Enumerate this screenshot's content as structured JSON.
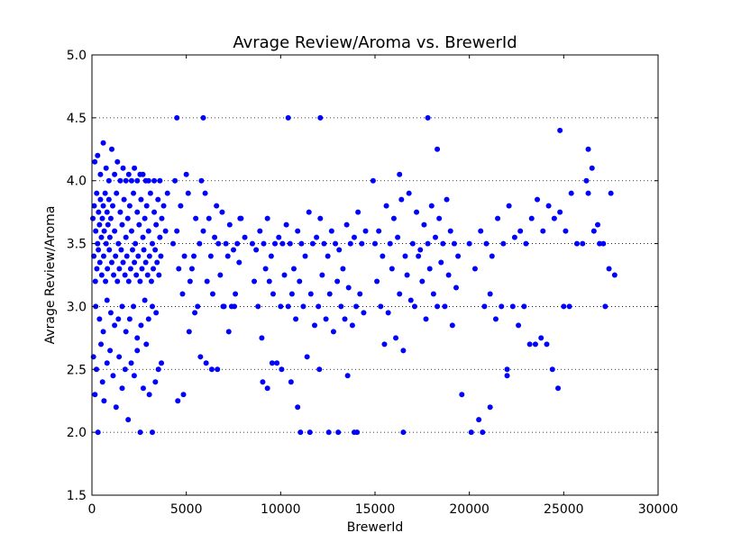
{
  "chart_data": {
    "type": "scatter",
    "title": "Avrage Review/Aroma vs. BrewerId",
    "xlabel": "BrewerId",
    "ylabel": "Avrage Review/Aroma",
    "xlim": [
      0,
      30000
    ],
    "ylim": [
      1.5,
      5.0
    ],
    "x_ticks": [
      0,
      5000,
      10000,
      15000,
      20000,
      25000,
      30000
    ],
    "x_tick_labels": [
      "0",
      "5000",
      "10000",
      "15000",
      "20000",
      "25000",
      "30000"
    ],
    "y_ticks": [
      1.5,
      2.0,
      2.5,
      3.0,
      3.5,
      4.0,
      4.5,
      5.0
    ],
    "y_tick_labels": [
      "1.5",
      "2.0",
      "2.5",
      "3.0",
      "3.5",
      "4.0",
      "4.5",
      "5.0"
    ],
    "grid": "horizontal dotted",
    "marker_color": "#0000ff",
    "series": [
      {
        "x": [
          50,
          120,
          200,
          250,
          300,
          350,
          400,
          450,
          500,
          550,
          600,
          650,
          700,
          750,
          800,
          850,
          900,
          950,
          1000,
          1100,
          1200,
          1300,
          1400,
          1500,
          1600,
          1700,
          1800,
          1900,
          2000,
          2100,
          2200,
          2300,
          2400,
          2500,
          2600,
          2700,
          2800,
          2900,
          3000,
          3100,
          3200,
          3300,
          3400,
          3500,
          3600,
          3700,
          3800,
          3900,
          4000,
          100,
          180,
          260,
          340,
          420,
          520,
          620,
          720,
          820,
          920,
          1050,
          1150,
          1250,
          1350,
          1450,
          1550,
          1650,
          1750,
          1850,
          1950,
          2050,
          2150,
          2250,
          2350,
          2450,
          2550,
          2650,
          2750,
          2850,
          2950,
          3050,
          3150,
          3250,
          3350,
          3450,
          3550,
          3650,
          150,
          300,
          450,
          600,
          750,
          900,
          1050,
          1200,
          1350,
          1500,
          1650,
          1800,
          1950,
          2100,
          2250,
          2400,
          2550,
          2700,
          2850,
          3000,
          3300,
          3600,
          200,
          400,
          600,
          800,
          1000,
          1200,
          1400,
          1600,
          1800,
          2000,
          2200,
          2400,
          2600,
          2800,
          3000,
          3200,
          3400,
          80,
          160,
          240,
          320,
          480,
          560,
          640,
          800,
          960,
          1120,
          1280,
          1440,
          1600,
          1760,
          1920,
          2080,
          2240,
          2400,
          2560,
          2720,
          2880,
          3040,
          3200,
          3360,
          3520,
          3680,
          4300,
          4500,
          4700,
          4900,
          5100,
          5300,
          5500,
          5700,
          5900,
          6100,
          6300,
          6500,
          6700,
          6900,
          7100,
          7300,
          7500,
          7700,
          7900,
          8100,
          4400,
          4600,
          4800,
          5000,
          5200,
          5400,
          5600,
          5800,
          6000,
          6200,
          6400,
          6600,
          6800,
          7000,
          7200,
          7400,
          7600,
          7800,
          4550,
          4850,
          5150,
          5450,
          5750,
          6050,
          6350,
          6650,
          6950,
          7250,
          7550,
          7850,
          8500,
          8700,
          8900,
          9100,
          9300,
          9500,
          9700,
          9900,
          10100,
          10300,
          10500,
          10700,
          10900,
          11100,
          11300,
          11500,
          11700,
          11900,
          12100,
          12300,
          12500,
          12700,
          12900,
          13100,
          13300,
          13500,
          13700,
          13900,
          14100,
          14300,
          14500,
          8600,
          8800,
          9000,
          9200,
          9400,
          9600,
          9800,
          10000,
          10200,
          10400,
          10600,
          10800,
          11000,
          11200,
          11400,
          11600,
          11800,
          12000,
          12200,
          12400,
          12600,
          12800,
          13000,
          13200,
          13400,
          13600,
          13800,
          14000,
          14200,
          14400,
          9050,
          9550,
          10050,
          10550,
          11050,
          11550,
          12050,
          12550,
          13050,
          13550,
          14050,
          15000,
          15200,
          15400,
          15600,
          15800,
          16000,
          16200,
          16400,
          16600,
          16800,
          17000,
          17200,
          17400,
          17600,
          17800,
          18000,
          18200,
          18400,
          18600,
          18800,
          19000,
          19200,
          19400,
          15100,
          15300,
          15500,
          15700,
          15900,
          16100,
          16300,
          16500,
          16700,
          16900,
          17100,
          17300,
          17500,
          17700,
          17900,
          18100,
          18300,
          18500,
          18700,
          18900,
          19100,
          19300,
          20000,
          20300,
          20600,
          20900,
          21200,
          21500,
          21800,
          22100,
          22400,
          22700,
          23000,
          23300,
          23600,
          23900,
          24200,
          24500,
          24800,
          25100,
          25400,
          25700,
          20100,
          20500,
          20800,
          21100,
          21400,
          21700,
          22000,
          22300,
          22600,
          22900,
          23200,
          23500,
          23800,
          24100,
          24400,
          24700,
          25000,
          25300,
          26000,
          26300,
          26600,
          26900,
          27200,
          27500,
          27700,
          26200,
          26500,
          26800,
          27100,
          27400,
          4500,
          5900,
          10400,
          12100,
          17800,
          24800,
          16300,
          18300,
          14900,
          9300,
          10900,
          13900,
          16500,
          20700,
          21100,
          22000,
          26300,
          19600
        ],
        "y": [
          3.7,
          3.8,
          3.6,
          3.9,
          3.5,
          3.75,
          3.65,
          3.85,
          3.55,
          3.7,
          3.8,
          3.6,
          3.9,
          3.5,
          3.75,
          3.65,
          3.85,
          3.55,
          3.7,
          3.8,
          3.6,
          3.9,
          3.5,
          3.75,
          3.65,
          3.85,
          3.55,
          3.7,
          3.8,
          3.6,
          3.9,
          3.5,
          3.75,
          3.65,
          3.85,
          3.55,
          3.7,
          3.8,
          3.6,
          3.9,
          3.5,
          3.75,
          3.65,
          3.85,
          3.55,
          3.7,
          3.8,
          3.6,
          3.9,
          3.4,
          3.2,
          3.3,
          3.45,
          3.35,
          3.25,
          3.4,
          3.2,
          3.3,
          3.45,
          3.35,
          3.25,
          3.4,
          3.2,
          3.3,
          3.45,
          3.35,
          3.25,
          3.4,
          3.2,
          3.3,
          3.45,
          3.35,
          3.25,
          3.4,
          3.2,
          3.3,
          3.45,
          3.35,
          3.25,
          3.4,
          3.2,
          3.3,
          3.45,
          3.35,
          3.25,
          3.4,
          4.15,
          4.2,
          4.05,
          4.3,
          4.1,
          4.0,
          4.25,
          4.05,
          4.15,
          4.0,
          4.1,
          4.0,
          4.05,
          4.0,
          4.1,
          4.0,
          4.05,
          4.05,
          4.0,
          4.0,
          4.0,
          4.0,
          3.0,
          2.9,
          2.8,
          3.05,
          2.95,
          2.85,
          2.9,
          3.0,
          2.8,
          2.9,
          3.0,
          2.75,
          2.85,
          3.05,
          2.9,
          3.0,
          2.95,
          2.6,
          2.3,
          2.5,
          2.0,
          2.7,
          2.4,
          2.25,
          2.55,
          2.65,
          2.45,
          2.2,
          2.6,
          2.35,
          2.5,
          2.1,
          2.55,
          2.45,
          2.65,
          2.0,
          2.35,
          2.7,
          2.3,
          2.0,
          2.4,
          2.5,
          2.55,
          3.5,
          3.6,
          3.8,
          3.4,
          3.9,
          3.3,
          3.7,
          3.5,
          3.6,
          3.2,
          3.4,
          3.55,
          3.5,
          3.75,
          3.5,
          3.65,
          3.45,
          3.5,
          3.7,
          3.55,
          4.0,
          3.3,
          3.1,
          4.05,
          3.2,
          3.4,
          3.0,
          4.0,
          3.9,
          3.7,
          3.1,
          3.8,
          3.25,
          3.0,
          3.4,
          3.0,
          3.1,
          3.35,
          2.25,
          2.3,
          2.8,
          2.95,
          2.6,
          2.55,
          2.5,
          2.5,
          3.0,
          2.8,
          3.0,
          3.7,
          3.5,
          3.45,
          3.6,
          3.5,
          3.7,
          3.4,
          3.5,
          3.55,
          3.5,
          3.65,
          3.5,
          3.3,
          3.6,
          3.5,
          3.4,
          3.75,
          3.5,
          3.55,
          3.7,
          3.5,
          3.4,
          3.6,
          3.5,
          3.45,
          3.3,
          3.65,
          3.5,
          3.55,
          3.75,
          3.5,
          3.6,
          3.2,
          3.0,
          2.75,
          3.3,
          3.2,
          3.1,
          2.55,
          3.0,
          3.25,
          3.0,
          3.1,
          2.9,
          3.2,
          3.0,
          2.6,
          3.1,
          2.85,
          3.0,
          3.25,
          2.9,
          3.1,
          2.8,
          3.2,
          3.0,
          2.9,
          3.15,
          2.85,
          3.0,
          3.1,
          2.95,
          2.4,
          2.55,
          2.5,
          2.4,
          2.0,
          2.0,
          2.5,
          2.0,
          2.0,
          2.45,
          2.0,
          3.5,
          3.6,
          3.4,
          3.8,
          3.5,
          3.7,
          3.55,
          3.85,
          3.4,
          3.9,
          3.5,
          3.75,
          3.45,
          3.65,
          3.5,
          3.8,
          3.55,
          3.7,
          3.5,
          3.85,
          3.6,
          3.5,
          3.4,
          3.2,
          3.0,
          2.7,
          2.95,
          3.3,
          2.75,
          3.1,
          2.65,
          3.25,
          3.05,
          3.0,
          3.4,
          3.2,
          2.9,
          3.3,
          3.1,
          3.0,
          3.35,
          3.0,
          3.25,
          2.85,
          3.15,
          3.5,
          3.3,
          3.6,
          3.5,
          3.4,
          3.7,
          3.5,
          3.8,
          3.55,
          3.6,
          3.5,
          3.7,
          3.85,
          3.6,
          3.8,
          3.7,
          3.75,
          3.6,
          3.9,
          3.5,
          2.0,
          2.1,
          3.0,
          3.1,
          2.9,
          3.0,
          2.45,
          3.0,
          2.85,
          3.0,
          2.7,
          2.7,
          2.75,
          2.7,
          2.5,
          2.35,
          3.0,
          3.0,
          3.5,
          3.9,
          3.6,
          3.5,
          3.0,
          3.9,
          3.25,
          4.0,
          4.1,
          3.65,
          3.5,
          3.3,
          4.5,
          4.5,
          4.5,
          4.5,
          4.5,
          4.4,
          4.05,
          4.25,
          4.0,
          2.35,
          2.2,
          2.0,
          2.0,
          2.0,
          2.2,
          2.5,
          4.25,
          2.3
        ]
      }
    ]
  }
}
